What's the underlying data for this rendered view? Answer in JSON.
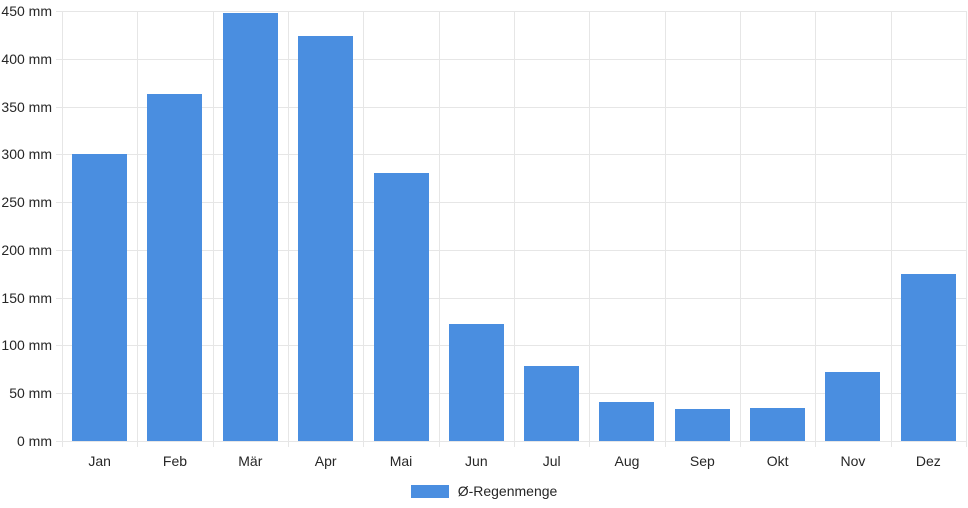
{
  "chart_data": {
    "type": "bar",
    "title": "",
    "xlabel": "",
    "ylabel": "",
    "unit": "mm",
    "categories": [
      "Jan",
      "Feb",
      "Mär",
      "Apr",
      "Mai",
      "Jun",
      "Jul",
      "Aug",
      "Sep",
      "Okt",
      "Nov",
      "Dez"
    ],
    "series": [
      {
        "name": "Ø-Regenmenge",
        "values": [
          300,
          363,
          448,
          424,
          280,
          122,
          79,
          41,
          33,
          35,
          72,
          175
        ]
      }
    ],
    "ylim": [
      0,
      450
    ],
    "ytick_step": 50,
    "ytick_labels": [
      "0 mm",
      "50 mm",
      "100 mm",
      "150 mm",
      "200 mm",
      "250 mm",
      "300 mm",
      "350 mm",
      "400 mm",
      "450 mm"
    ],
    "grid": true,
    "legend": {
      "position": "bottom",
      "entries": [
        "Ø-Regenmenge"
      ]
    }
  },
  "colors": {
    "bar": "#4a8ee0",
    "grid": "#e6e6e6",
    "text": "#262626",
    "background": "#ffffff"
  }
}
